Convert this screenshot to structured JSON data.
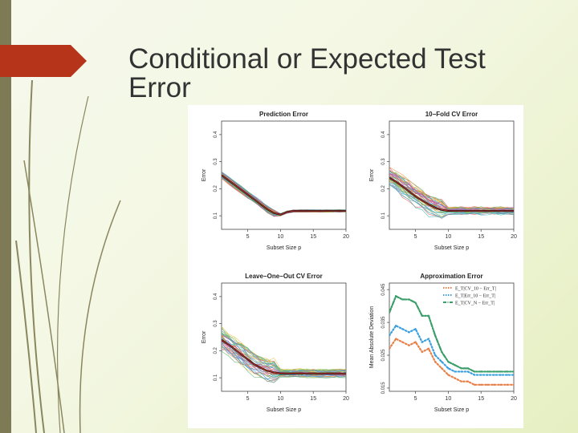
{
  "slide": {
    "title": "Conditional or Expected Test Error",
    "accent_color": "#b5341a",
    "strip_color": "#7d7a55"
  },
  "chart_data": [
    {
      "type": "line",
      "title": "Prediction Error",
      "xlabel": "Subset Size p",
      "ylabel": "Error",
      "xlim": [
        1,
        20
      ],
      "ylim": [
        0.05,
        0.45
      ],
      "xticks": [
        5,
        10,
        15,
        20
      ],
      "yticks": [
        0.1,
        0.2,
        0.3,
        0.4
      ],
      "x": [
        1,
        2,
        3,
        4,
        5,
        6,
        7,
        8,
        9,
        10,
        11,
        12,
        13,
        14,
        15,
        16,
        17,
        18,
        19,
        20
      ],
      "series": [
        {
          "values": [
            0.25,
            0.232,
            0.214,
            0.196,
            0.178,
            0.16,
            0.142,
            0.124,
            0.11,
            0.104,
            0.114,
            0.118,
            0.118,
            0.118,
            0.118,
            0.118,
            0.118,
            0.118,
            0.118,
            0.118
          ]
        }
      ],
      "spread": 0.012
    },
    {
      "type": "line",
      "title": "10−Fold CV Error",
      "xlabel": "Subset Size p",
      "ylabel": "Error",
      "xlim": [
        1,
        20
      ],
      "ylim": [
        0.05,
        0.45
      ],
      "xticks": [
        5,
        10,
        15,
        20
      ],
      "yticks": [
        0.1,
        0.2,
        0.3,
        0.4
      ],
      "x": [
        1,
        2,
        3,
        4,
        5,
        6,
        7,
        8,
        9,
        10,
        11,
        12,
        13,
        14,
        15,
        16,
        17,
        18,
        19,
        20
      ],
      "series": [
        {
          "values": [
            0.24,
            0.226,
            0.208,
            0.19,
            0.172,
            0.156,
            0.142,
            0.13,
            0.122,
            0.118,
            0.118,
            0.118,
            0.118,
            0.118,
            0.118,
            0.118,
            0.118,
            0.118,
            0.118,
            0.118
          ]
        }
      ],
      "spread": 0.04
    },
    {
      "type": "line",
      "title": "Leave−One−Out CV Error",
      "xlabel": "Subset Size p",
      "ylabel": "Error",
      "xlim": [
        1,
        20
      ],
      "ylim": [
        0.05,
        0.45
      ],
      "xticks": [
        5,
        10,
        15,
        20
      ],
      "yticks": [
        0.1,
        0.2,
        0.3,
        0.4
      ],
      "x": [
        1,
        2,
        3,
        4,
        5,
        6,
        7,
        8,
        9,
        10,
        11,
        12,
        13,
        14,
        15,
        16,
        17,
        18,
        19,
        20
      ],
      "series": [
        {
          "values": [
            0.24,
            0.224,
            0.206,
            0.186,
            0.168,
            0.15,
            0.136,
            0.126,
            0.12,
            0.116,
            0.116,
            0.116,
            0.116,
            0.116,
            0.116,
            0.116,
            0.116,
            0.116,
            0.116,
            0.116
          ]
        }
      ],
      "spread": 0.042
    },
    {
      "type": "line",
      "title": "Approximation Error",
      "xlabel": "Subset Size p",
      "ylabel": "Mean Absolute Deviation",
      "xlim": [
        1,
        20
      ],
      "ylim": [
        0.014,
        0.047
      ],
      "xticks": [
        5,
        10,
        15,
        20
      ],
      "yticks": [
        0.015,
        0.025,
        0.035,
        0.045
      ],
      "x": [
        1,
        2,
        3,
        4,
        5,
        6,
        7,
        8,
        9,
        10,
        11,
        12,
        13,
        14,
        15,
        16,
        17,
        18,
        19,
        20
      ],
      "legend": {
        "position": "top-right",
        "entries": [
          "E_T|CV_10 − Err_T|",
          "E_T|Err_10 − Err_T|",
          "E_T|CV_N − Err_T|"
        ]
      },
      "series": [
        {
          "color": "#e8804a",
          "style": "dotted",
          "values": [
            0.027,
            0.03,
            0.029,
            0.028,
            0.029,
            0.026,
            0.027,
            0.023,
            0.021,
            0.019,
            0.018,
            0.017,
            0.017,
            0.016,
            0.016,
            0.016,
            0.016,
            0.016,
            0.016,
            0.016
          ]
        },
        {
          "color": "#3aa0e0",
          "style": "dotted",
          "values": [
            0.031,
            0.034,
            0.033,
            0.032,
            0.033,
            0.029,
            0.03,
            0.025,
            0.023,
            0.021,
            0.02,
            0.02,
            0.02,
            0.019,
            0.019,
            0.019,
            0.019,
            0.019,
            0.019,
            0.019
          ]
        },
        {
          "color": "#3a9e6a",
          "style": "dashdot",
          "values": [
            0.038,
            0.043,
            0.042,
            0.042,
            0.041,
            0.037,
            0.037,
            0.031,
            0.026,
            0.023,
            0.022,
            0.021,
            0.021,
            0.02,
            0.02,
            0.02,
            0.02,
            0.02,
            0.02,
            0.02
          ]
        }
      ]
    }
  ]
}
